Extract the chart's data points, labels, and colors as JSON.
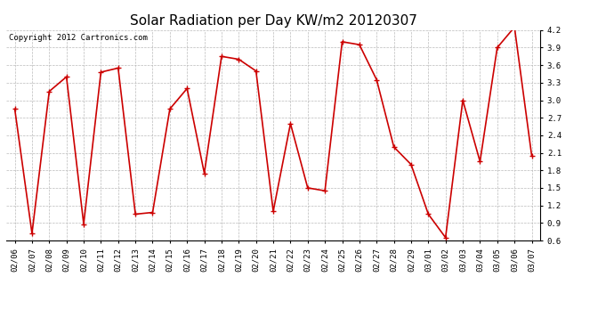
{
  "title": "Solar Radiation per Day KW/m2 20120307",
  "copyright": "Copyright 2012 Cartronics.com",
  "dates": [
    "02/06",
    "02/07",
    "02/08",
    "02/09",
    "02/10",
    "02/11",
    "02/12",
    "02/13",
    "02/14",
    "02/15",
    "02/16",
    "02/17",
    "02/18",
    "02/19",
    "02/20",
    "02/21",
    "02/22",
    "02/23",
    "02/24",
    "02/25",
    "02/26",
    "02/27",
    "02/28",
    "02/29",
    "03/01",
    "03/02",
    "03/03",
    "03/04",
    "03/05",
    "03/06",
    "03/07"
  ],
  "values": [
    2.85,
    0.72,
    3.15,
    3.4,
    0.88,
    3.48,
    3.55,
    1.05,
    1.08,
    2.85,
    3.2,
    1.75,
    3.75,
    3.7,
    3.5,
    1.1,
    2.6,
    1.5,
    1.45,
    4.0,
    3.95,
    3.35,
    2.2,
    1.9,
    1.05,
    0.65,
    3.0,
    1.95,
    3.9,
    4.25,
    2.05
  ],
  "line_color": "#cc0000",
  "marker": "+",
  "marker_color": "#cc0000",
  "bg_color": "#ffffff",
  "grid_color": "#bbbbbb",
  "ylim": [
    0.6,
    4.2
  ],
  "yticks": [
    0.6,
    0.9,
    1.2,
    1.5,
    1.8,
    2.1,
    2.4,
    2.7,
    3.0,
    3.3,
    3.6,
    3.9,
    4.2
  ],
  "title_fontsize": 11,
  "copyright_fontsize": 6.5,
  "tick_fontsize": 6.5
}
